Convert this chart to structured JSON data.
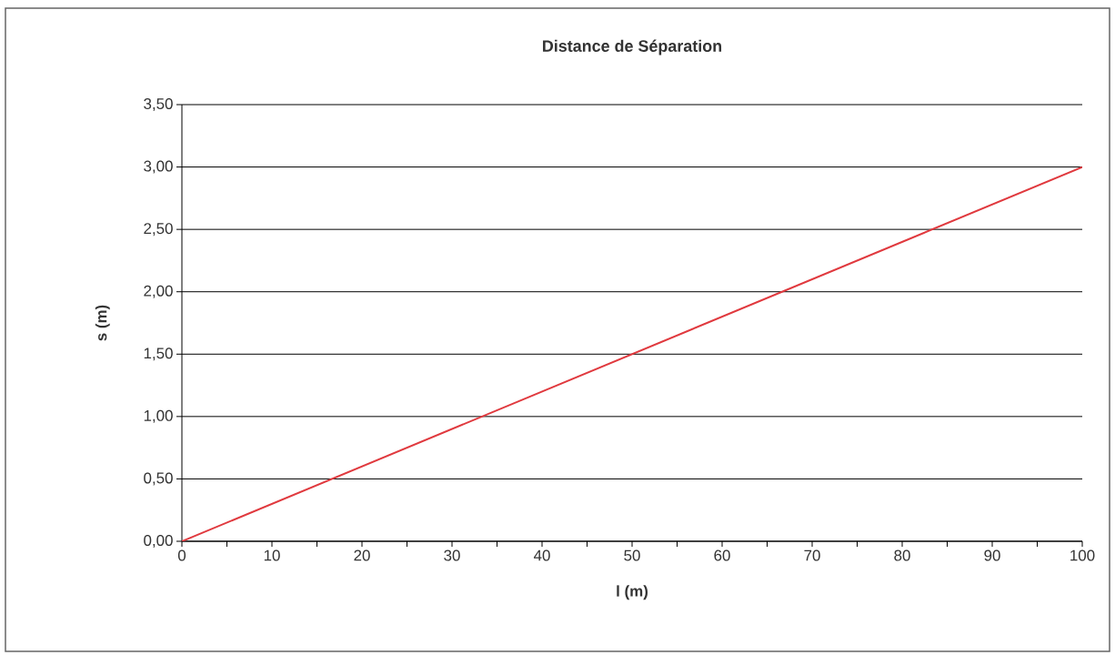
{
  "chart_data": {
    "type": "line",
    "title": "Distance de Séparation",
    "xlabel": "l (m)",
    "ylabel": "s (m)",
    "x": [
      0,
      100
    ],
    "series": [
      {
        "color": "#e0393e",
        "values": [
          0,
          3.0
        ]
      }
    ],
    "xlim": [
      0,
      100
    ],
    "xticks": [
      0,
      10,
      20,
      30,
      40,
      50,
      60,
      70,
      80,
      90,
      100
    ],
    "ylim": [
      0,
      3.5
    ],
    "yticks": [
      {
        "value": 0,
        "label": "0,00"
      },
      {
        "value": 0.5,
        "label": "0,50"
      },
      {
        "value": 1,
        "label": "1,00"
      },
      {
        "value": 1.5,
        "label": "1,50"
      },
      {
        "value": 2,
        "label": "2,00"
      },
      {
        "value": 2.5,
        "label": "2,50"
      },
      {
        "value": 3,
        "label": "3,00"
      },
      {
        "value": 3.5,
        "label": "3,50"
      }
    ],
    "grid": "y"
  }
}
